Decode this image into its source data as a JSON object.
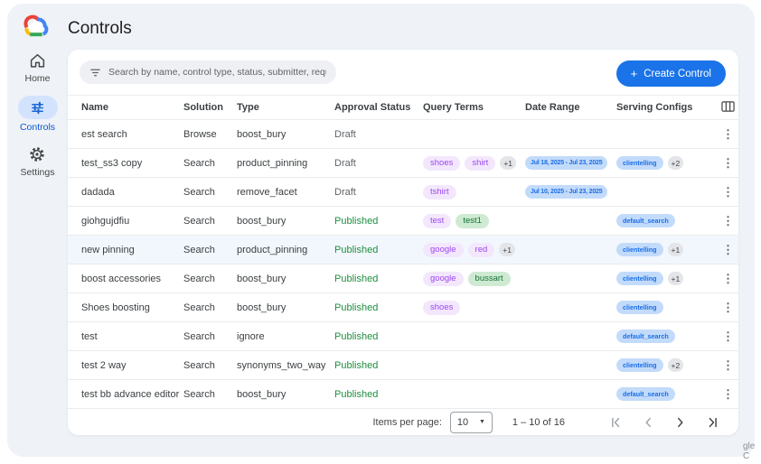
{
  "app": {
    "title": "Controls"
  },
  "sidebar": {
    "items": [
      {
        "label": "Home",
        "active": false
      },
      {
        "label": "Controls",
        "active": true
      },
      {
        "label": "Settings",
        "active": false
      }
    ]
  },
  "toolbar": {
    "search_placeholder": "Search by name, control type, status, submitter, requested on",
    "create_plus": "+",
    "create_label": "Create Control"
  },
  "table": {
    "columns": [
      "Name",
      "Solution",
      "Type",
      "Approval Status",
      "Query Terms",
      "Date Range",
      "Serving Configs"
    ],
    "rows": [
      {
        "name": "est search",
        "solution": "Browse",
        "type": "boost_bury",
        "status": "Draft",
        "status_kind": "draft",
        "query_terms": [],
        "query_more": null,
        "date_range": "",
        "serving": null,
        "serving_more": null,
        "highlighted": false
      },
      {
        "name": "test_ss3 copy",
        "solution": "Search",
        "type": "product_pinning",
        "status": "Draft",
        "status_kind": "draft",
        "query_terms": [
          {
            "text": "shoes",
            "color": "purple"
          },
          {
            "text": "shirt",
            "color": "purple"
          }
        ],
        "query_more": "+1",
        "date_range": "Jul 18, 2025 - Jul 23, 2025",
        "serving": "clientelling",
        "serving_more": "+2",
        "highlighted": false
      },
      {
        "name": "dadada",
        "solution": "Search",
        "type": "remove_facet",
        "status": "Draft",
        "status_kind": "draft",
        "query_terms": [
          {
            "text": "tshirt",
            "color": "purple"
          }
        ],
        "query_more": null,
        "date_range": "Jul 10, 2025 - Jul 23, 2025",
        "serving": null,
        "serving_more": null,
        "highlighted": false
      },
      {
        "name": "giohgujdfiu",
        "solution": "Search",
        "type": "boost_bury",
        "status": "Published",
        "status_kind": "published",
        "query_terms": [
          {
            "text": "test",
            "color": "purple"
          },
          {
            "text": "test1",
            "color": "green"
          }
        ],
        "query_more": null,
        "date_range": "",
        "serving": "default_search",
        "serving_more": null,
        "highlighted": false
      },
      {
        "name": "new pinning",
        "solution": "Search",
        "type": "product_pinning",
        "status": "Published",
        "status_kind": "published",
        "query_terms": [
          {
            "text": "google",
            "color": "purple"
          },
          {
            "text": "red",
            "color": "purple"
          }
        ],
        "query_more": "+1",
        "date_range": "",
        "serving": "clientelling",
        "serving_more": "+1",
        "highlighted": true
      },
      {
        "name": "boost accessories",
        "solution": "Search",
        "type": "boost_bury",
        "status": "Published",
        "status_kind": "published",
        "query_terms": [
          {
            "text": "google",
            "color": "purple"
          },
          {
            "text": "bussart",
            "color": "green"
          }
        ],
        "query_more": null,
        "date_range": "",
        "serving": "clientelling",
        "serving_more": "+1",
        "highlighted": false
      },
      {
        "name": "Shoes boosting",
        "solution": "Search",
        "type": "boost_bury",
        "status": "Published",
        "status_kind": "published",
        "query_terms": [
          {
            "text": "shoes",
            "color": "purple"
          }
        ],
        "query_more": null,
        "date_range": "",
        "serving": "clientelling",
        "serving_more": null,
        "highlighted": false
      },
      {
        "name": "test",
        "solution": "Search",
        "type": "ignore",
        "status": "Published",
        "status_kind": "published",
        "query_terms": [],
        "query_more": null,
        "date_range": "",
        "serving": "default_search",
        "serving_more": null,
        "highlighted": false
      },
      {
        "name": "test 2 way",
        "solution": "Search",
        "type": "synonyms_two_way",
        "status": "Published",
        "status_kind": "published",
        "query_terms": [],
        "query_more": null,
        "date_range": "",
        "serving": "clientelling",
        "serving_more": "+2",
        "highlighted": false
      },
      {
        "name": "test bb advance editor",
        "solution": "Search",
        "type": "boost_bury",
        "status": "Published",
        "status_kind": "published",
        "query_terms": [],
        "query_more": null,
        "date_range": "",
        "serving": "default_search",
        "serving_more": null,
        "highlighted": false
      }
    ]
  },
  "pagination": {
    "items_per_page_label": "Items per page:",
    "page_size": "10",
    "range": "1 – 10 of 16"
  },
  "watermark": {
    "text": "gle C"
  },
  "colors": {
    "accent": "#1a73e8",
    "published": "#1e8e3e",
    "draft": "#5f6368",
    "query_pill_purple_bg": "#f3e7fd",
    "query_pill_purple_text": "#9c48f0",
    "query_pill_green_bg": "#cfead2",
    "query_pill_green_text": "#137333",
    "blue_pill_bg": "#c3dbfa",
    "blue_pill_text": "#1a6fe8",
    "app_bg": "#eff2f7",
    "active_nav_bg": "#d3e3fd",
    "row_highlight": "#f2f7fd"
  }
}
